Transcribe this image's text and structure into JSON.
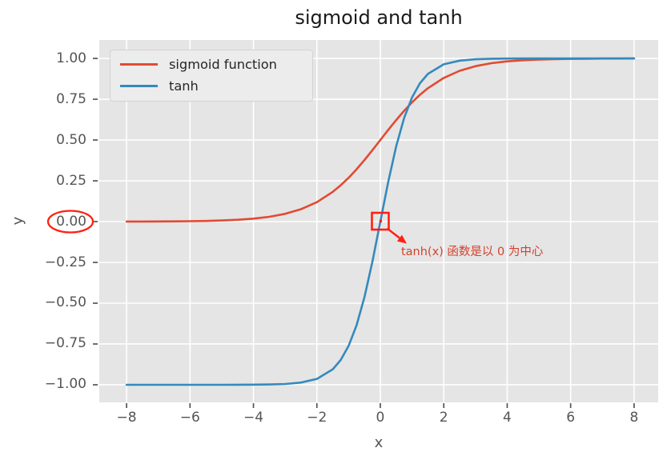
{
  "chart_data": {
    "type": "line",
    "title": "sigmoid and tanh",
    "xlabel": "x",
    "ylabel": "y",
    "grid": true,
    "x_range": [
      -8.86,
      8.76
    ],
    "y_range": [
      -1.108,
      1.113
    ],
    "x_ticks": [
      -8,
      -6,
      -4,
      -2,
      0,
      2,
      4,
      6,
      8
    ],
    "x_tick_labels": [
      "−8",
      "−6",
      "−4",
      "−2",
      "0",
      "2",
      "4",
      "6",
      "8"
    ],
    "y_ticks": [
      1.0,
      0.75,
      0.5,
      0.25,
      0.0,
      -0.25,
      -0.5,
      -0.75,
      -1.0
    ],
    "y_tick_labels": [
      "1.00",
      "0.75",
      "0.50",
      "0.25",
      "0.00",
      "−0.25",
      "−0.50",
      "−0.75",
      "−1.00"
    ],
    "legend": {
      "position": "upper left",
      "items": [
        {
          "label": "sigmoid function",
          "color": "#E24A33"
        },
        {
          "label": "tanh",
          "color": "#348ABD"
        }
      ]
    },
    "series": [
      {
        "name": "sigmoid function",
        "color": "#E24A33",
        "x": [
          -8,
          -7.5,
          -7,
          -6.5,
          -6,
          -5.5,
          -5,
          -4.5,
          -4,
          -3.5,
          -3,
          -2.5,
          -2,
          -1.5,
          -1.25,
          -1,
          -0.75,
          -0.5,
          -0.25,
          0,
          0.25,
          0.5,
          0.75,
          1,
          1.25,
          1.5,
          2,
          2.5,
          3,
          3.5,
          4,
          4.5,
          5,
          5.5,
          6,
          6.5,
          7,
          7.5,
          8
        ],
        "y": [
          0.00034,
          0.00055,
          0.00091,
          0.0015,
          0.00247,
          0.00407,
          0.00669,
          0.01111,
          0.01799,
          0.02931,
          0.04743,
          0.07586,
          0.1192,
          0.18243,
          0.2227,
          0.26894,
          0.32082,
          0.37754,
          0.43782,
          0.5,
          0.56218,
          0.62246,
          0.67918,
          0.73106,
          0.7773,
          0.81757,
          0.8808,
          0.92414,
          0.95257,
          0.97069,
          0.98201,
          0.98889,
          0.99331,
          0.99593,
          0.99753,
          0.9985,
          0.99909,
          0.99945,
          0.99966
        ]
      },
      {
        "name": "tanh",
        "color": "#348ABD",
        "x": [
          -8,
          -7.5,
          -7,
          -6.5,
          -6,
          -5.5,
          -5,
          -4.5,
          -4,
          -3.5,
          -3,
          -2.5,
          -2,
          -1.5,
          -1.25,
          -1,
          -0.75,
          -0.5,
          -0.25,
          0,
          0.25,
          0.5,
          0.75,
          1,
          1.25,
          1.5,
          2,
          2.5,
          3,
          3.5,
          4,
          4.5,
          5,
          5.5,
          6,
          6.5,
          7,
          7.5,
          8
        ],
        "y": [
          -1,
          -1,
          -1,
          -0.99999,
          -0.99999,
          -0.99997,
          -0.99991,
          -0.99975,
          -0.99933,
          -0.99818,
          -0.99505,
          -0.98661,
          -0.96403,
          -0.90515,
          -0.84828,
          -0.76159,
          -0.63515,
          -0.46212,
          -0.24492,
          0,
          0.24492,
          0.46212,
          0.63515,
          0.76159,
          0.84828,
          0.90515,
          0.96403,
          0.98661,
          0.99505,
          0.99818,
          0.99933,
          0.99975,
          0.99991,
          0.99997,
          0.99999,
          1,
          1,
          1,
          1
        ]
      }
    ],
    "annotation": {
      "text": "tanh(x) 函数是以 0 为中心",
      "point": [
        0,
        0
      ],
      "color": "#FF2010",
      "text_color": "#D6402C"
    },
    "circled_tick": {
      "label": "0.00",
      "color": "#FF2010"
    },
    "styles": {
      "figure_bg": "#FFFFFF",
      "axes_bg": "#E5E5E5",
      "grid_color": "#FFFFFF",
      "tick_color": "#555555",
      "title_color": "#1A1A1A",
      "legend_text_color": "#262626"
    }
  }
}
